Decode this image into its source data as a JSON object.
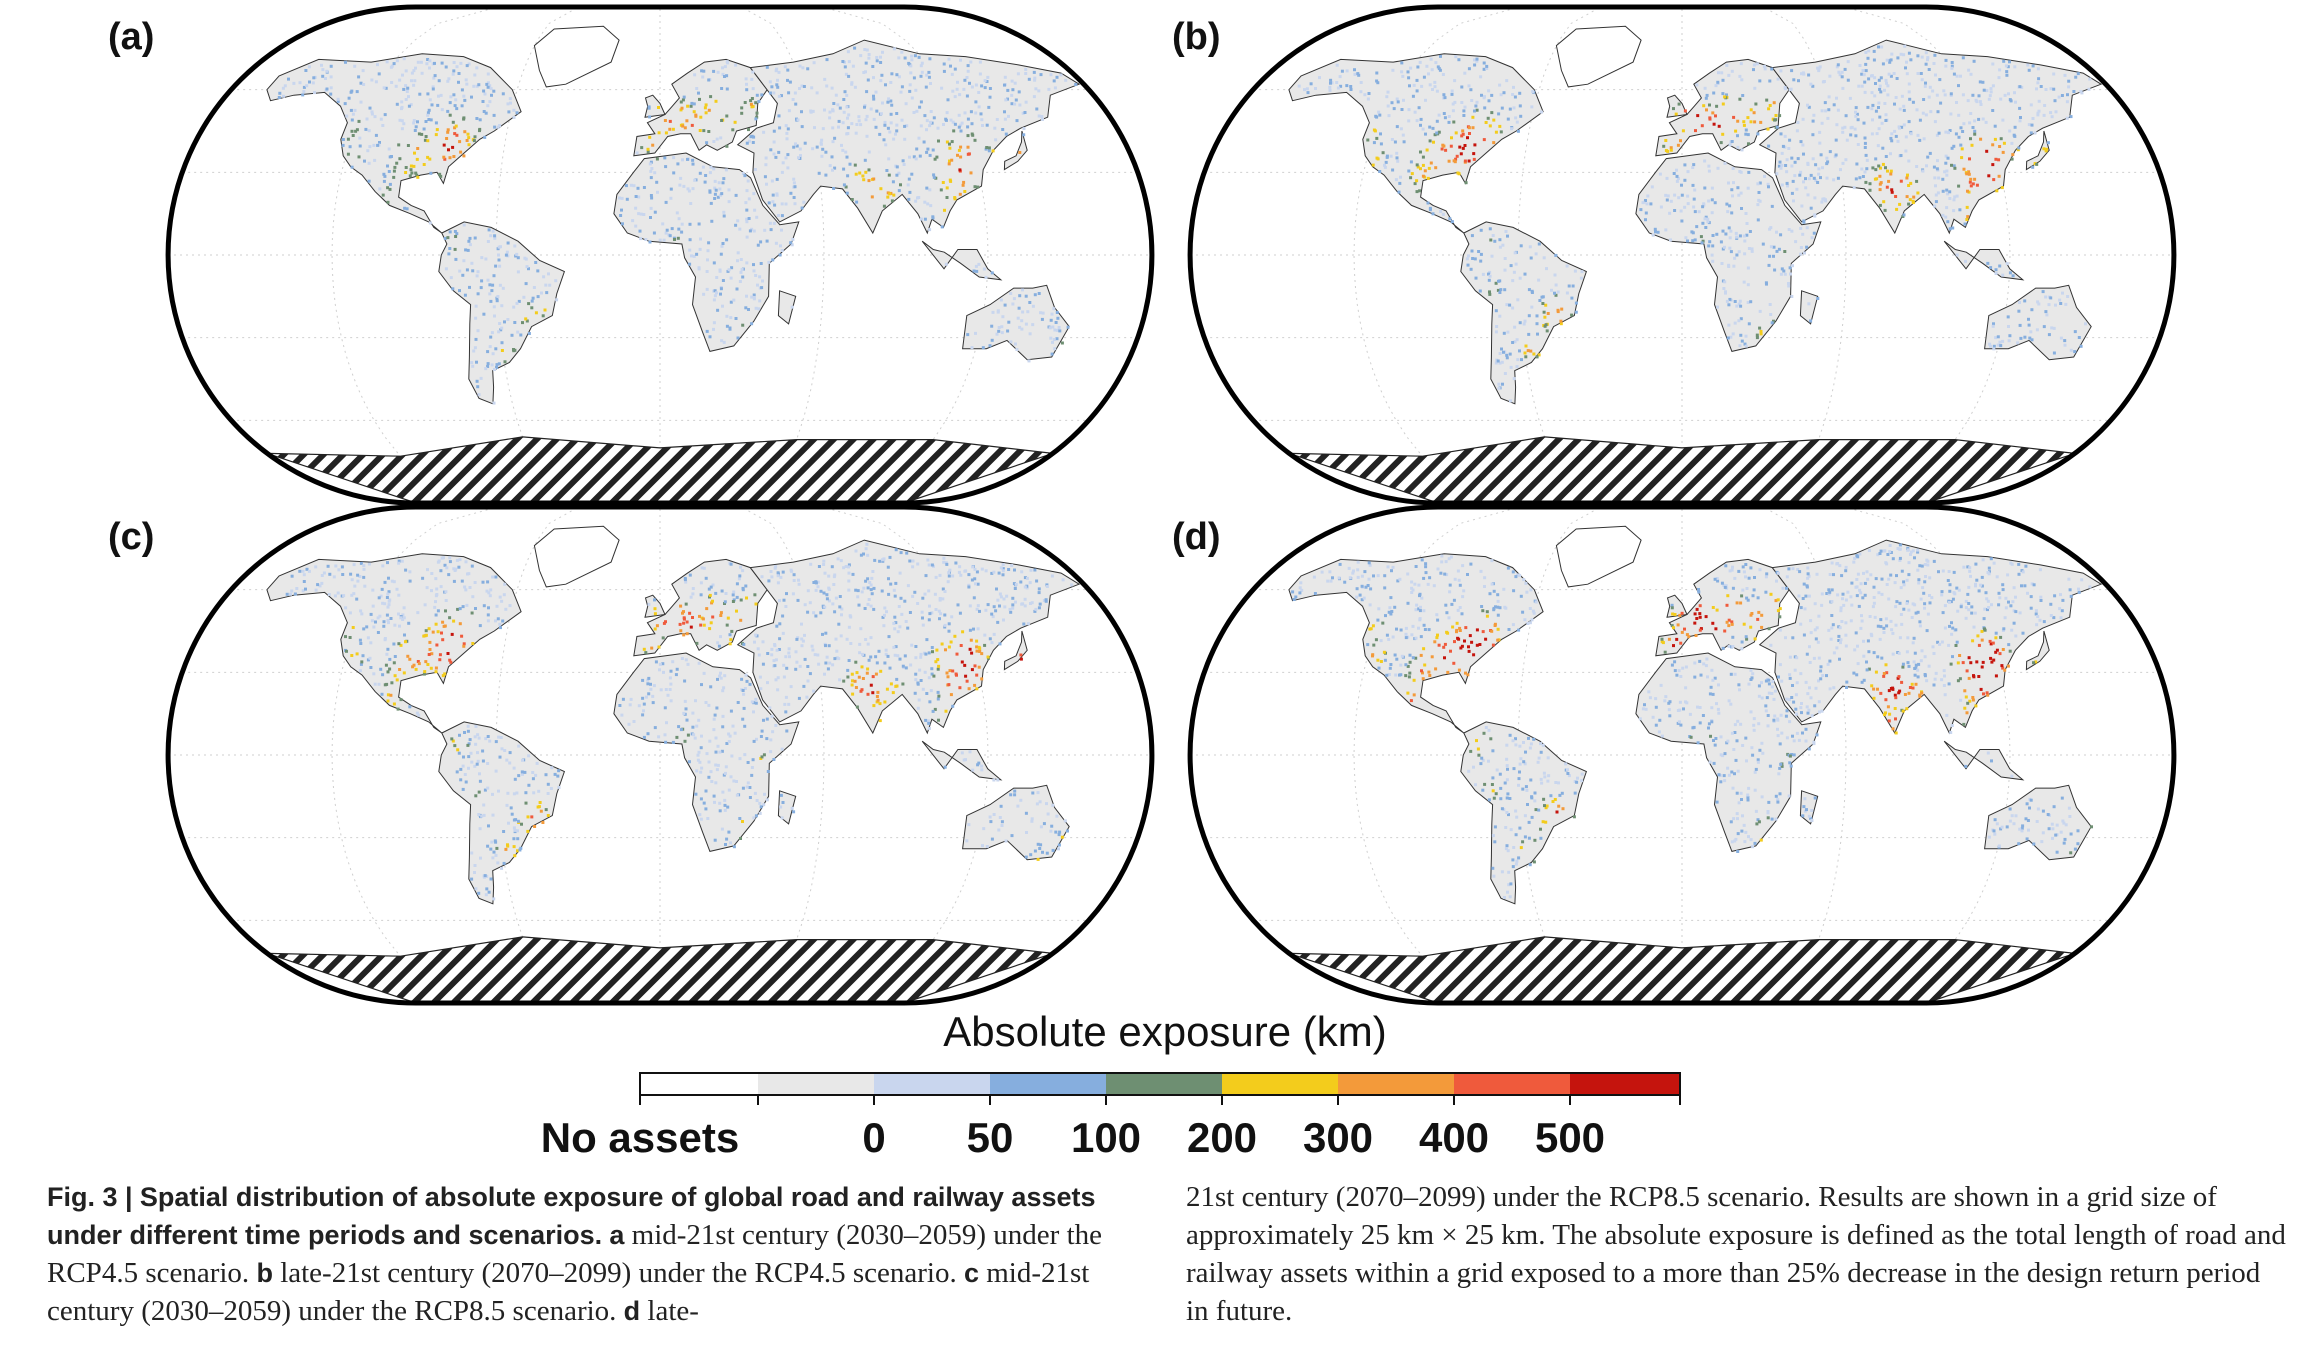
{
  "panels": [
    {
      "id": "a",
      "label": "(a)"
    },
    {
      "id": "b",
      "label": "(b)"
    },
    {
      "id": "c",
      "label": "(c)"
    },
    {
      "id": "d",
      "label": "(d)"
    }
  ],
  "legend": {
    "title": "Absolute exposure (km)",
    "no_assets_label": "No assets",
    "ticks": [
      "0",
      "50",
      "100",
      "200",
      "300",
      "400",
      "500"
    ],
    "colors": {
      "no_assets": "#ffffff",
      "zero": "#e8e8e8",
      "c0_50": "#c9d6ee",
      "c50_100": "#86aede",
      "c100_200": "#6e8f72",
      "c200_300": "#f3cc1c",
      "c300_400": "#f39a3a",
      "c400_500": "#ef5a3c",
      "c500_plus": "#c5140d"
    }
  },
  "caption": {
    "fig_label": "Fig. 3 |",
    "title": "Spatial distribution of absolute exposure of global road and railway assets under different time periods and scenarios.",
    "a_key": "a",
    "a_text": "mid-21st century (2030–2059) under the RCP4.5 scenario.",
    "b_key": "b",
    "b_text": "late-21st century (2070–2099) under the RCP4.5 scenario.",
    "c_key": "c",
    "c_text": "mid-21st century (2030–2059) under the RCP8.5 scenario.",
    "d_key": "d",
    "d_text_left": "late-",
    "d_text_right": "21st century (2070–2099) under the RCP8.5 scenario.",
    "rest": "Results are shown in a grid size of approximately 25 km × 25 km. The absolute exposure is defined as the total length of road and railway assets within a grid exposed to a more than 25% decrease in the design return period in future."
  }
}
